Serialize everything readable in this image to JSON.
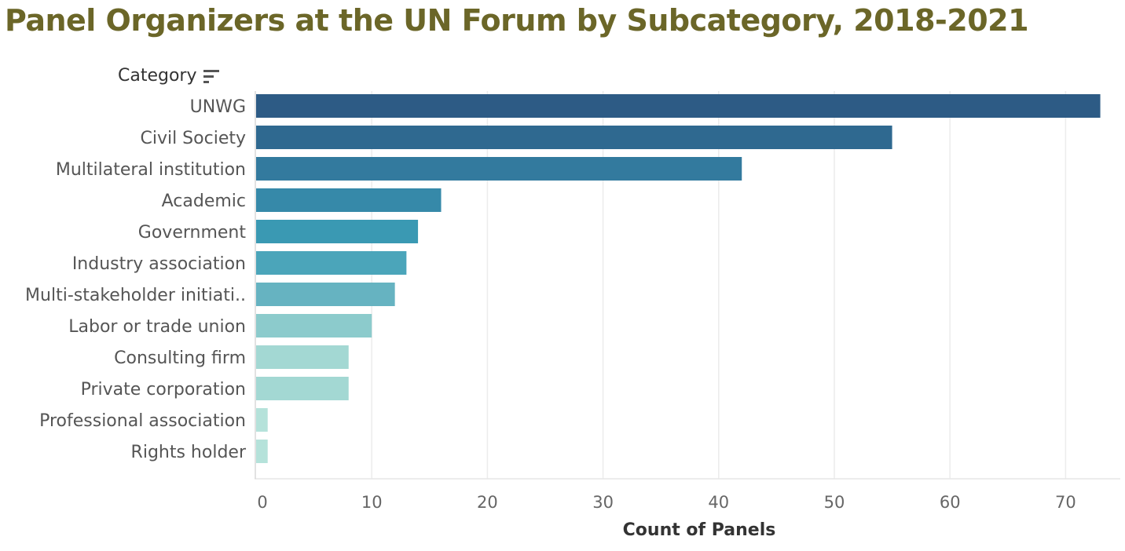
{
  "chart_data": {
    "type": "bar",
    "orientation": "horizontal",
    "title": "Panel Organizers at the UN Forum by Subcategory, 2018-2021",
    "category_header": "Category",
    "xlabel": "Count of Panels",
    "ylabel": "Category",
    "categories": [
      "UNWG",
      "Civil Society",
      "Multilateral institution",
      "Academic",
      "Government",
      "Industry association",
      "Multi-stakeholder initiati..",
      "Labor or trade union",
      "Consulting firm",
      "Private corporation",
      "Professional association",
      "Rights holder"
    ],
    "values": [
      73,
      55,
      42,
      16,
      14,
      13,
      12,
      10,
      8,
      8,
      1,
      1
    ],
    "xlim": [
      0,
      75
    ],
    "xticks": [
      0,
      10,
      20,
      30,
      40,
      50,
      60,
      70
    ],
    "grid": true,
    "colors": [
      "#2d5b85",
      "#2f6990",
      "#337a9e",
      "#3689a9",
      "#3a99b3",
      "#4ba5ba",
      "#66b3c1",
      "#8ccbcc",
      "#a3d8d3",
      "#a3d8d3",
      "#b5e2da",
      "#b5e2da"
    ]
  },
  "header": {
    "sort_icon": "sort-descending-icon"
  }
}
